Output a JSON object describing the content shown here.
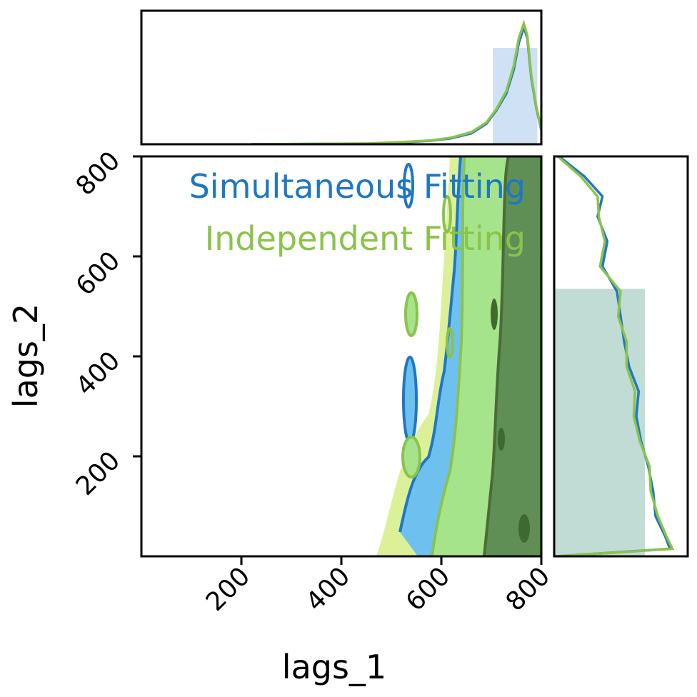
{
  "chart_data": {
    "type": "corner-plot",
    "colors": {
      "simultaneous": "#1f77c4",
      "independent": "#8bc34a"
    },
    "series": [
      {
        "name": "Simultaneous Fitting",
        "key": "simultaneous"
      },
      {
        "name": "Independent Fitting",
        "key": "independent"
      }
    ],
    "legend": {
      "items": [
        "Simultaneous Fitting",
        "Independent Fitting"
      ],
      "placement": "top-left of joint panel"
    },
    "xlabel": "lags_1",
    "ylabel": "lags_2",
    "xlim": [
      0,
      800
    ],
    "ylim": [
      0,
      800
    ],
    "xticks": [
      "200",
      "400",
      "600",
      "800"
    ],
    "yticks": [
      "200",
      "400",
      "600",
      "800"
    ],
    "xtick_values": [
      200,
      400,
      600,
      800
    ],
    "ytick_values": [
      200,
      400,
      600,
      800
    ],
    "marginal_x": {
      "lags_1": [
        220,
        450,
        520,
        580,
        620,
        660,
        690,
        710,
        730,
        745,
        755,
        765,
        772,
        780,
        790,
        800
      ],
      "simultaneous": [
        0.0,
        0.005,
        0.015,
        0.03,
        0.05,
        0.09,
        0.17,
        0.28,
        0.42,
        0.62,
        0.84,
        0.97,
        0.88,
        0.55,
        0.3,
        0.12
      ],
      "independent": [
        0.0,
        0.006,
        0.018,
        0.032,
        0.055,
        0.1,
        0.18,
        0.29,
        0.44,
        0.65,
        0.88,
        1.0,
        0.9,
        0.57,
        0.31,
        0.13
      ],
      "shaded_interval": [
        703,
        792
      ]
    },
    "marginal_y": {
      "lags_2": [
        0,
        15,
        40,
        80,
        130,
        180,
        230,
        280,
        330,
        380,
        430,
        480,
        530,
        580,
        630,
        680,
        720,
        760,
        800
      ],
      "simultaneous": [
        0.02,
        0.96,
        0.92,
        0.84,
        0.82,
        0.78,
        0.72,
        0.68,
        0.7,
        0.62,
        0.58,
        0.55,
        0.52,
        0.4,
        0.44,
        0.36,
        0.4,
        0.25,
        0.04
      ],
      "independent": [
        0.02,
        0.98,
        0.93,
        0.86,
        0.8,
        0.79,
        0.71,
        0.66,
        0.67,
        0.6,
        0.6,
        0.53,
        0.55,
        0.38,
        0.42,
        0.37,
        0.36,
        0.22,
        0.03
      ],
      "shaded_interval": [
        0,
        535
      ]
    },
    "contours": {
      "outer_simultaneous_x_range": [
        500,
        800
      ],
      "inner_dark_x_range": [
        690,
        800
      ],
      "bottom_spread_x": [
        470,
        600
      ]
    }
  }
}
